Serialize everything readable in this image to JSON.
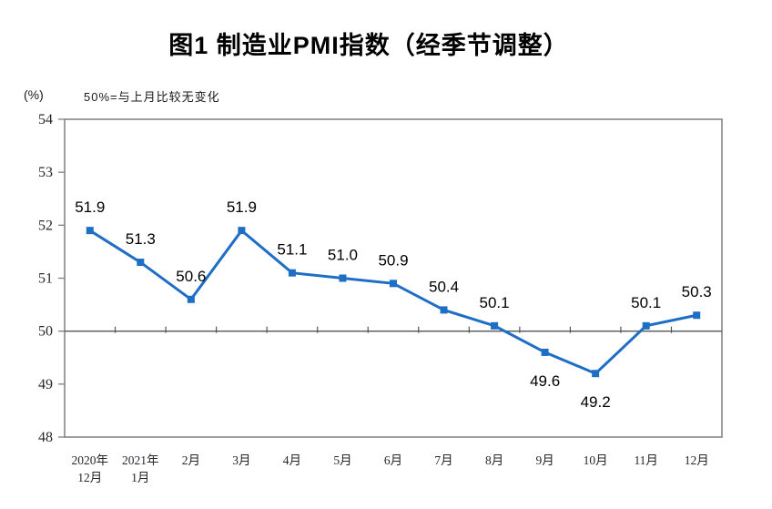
{
  "chart_data": {
    "type": "line",
    "title": "图1 制造业PMI指数（经季节调整）",
    "ylabel": "(%)",
    "annotation": "50%=与上月比较无变化",
    "categories": [
      "2020年\n12月",
      "2021年\n1月",
      "2月",
      "3月",
      "4月",
      "5月",
      "6月",
      "7月",
      "8月",
      "9月",
      "10月",
      "11月",
      "12月"
    ],
    "values": [
      51.9,
      51.3,
      50.6,
      51.9,
      51.1,
      51.0,
      50.9,
      50.4,
      50.1,
      49.6,
      49.2,
      50.1,
      50.3
    ],
    "ylim": [
      48,
      54
    ],
    "y_tick_step": 1,
    "reference_line_value": 50,
    "label_below_indices": [
      9,
      10
    ],
    "grid": false,
    "legend": "none",
    "colors": {
      "series": "#1f6ec6",
      "marker": "#1f6ec6",
      "plot_border": "#7f7f7f",
      "reference_line": "#555555",
      "axis_text": "#26262e",
      "data_label_text": "#000000"
    }
  }
}
